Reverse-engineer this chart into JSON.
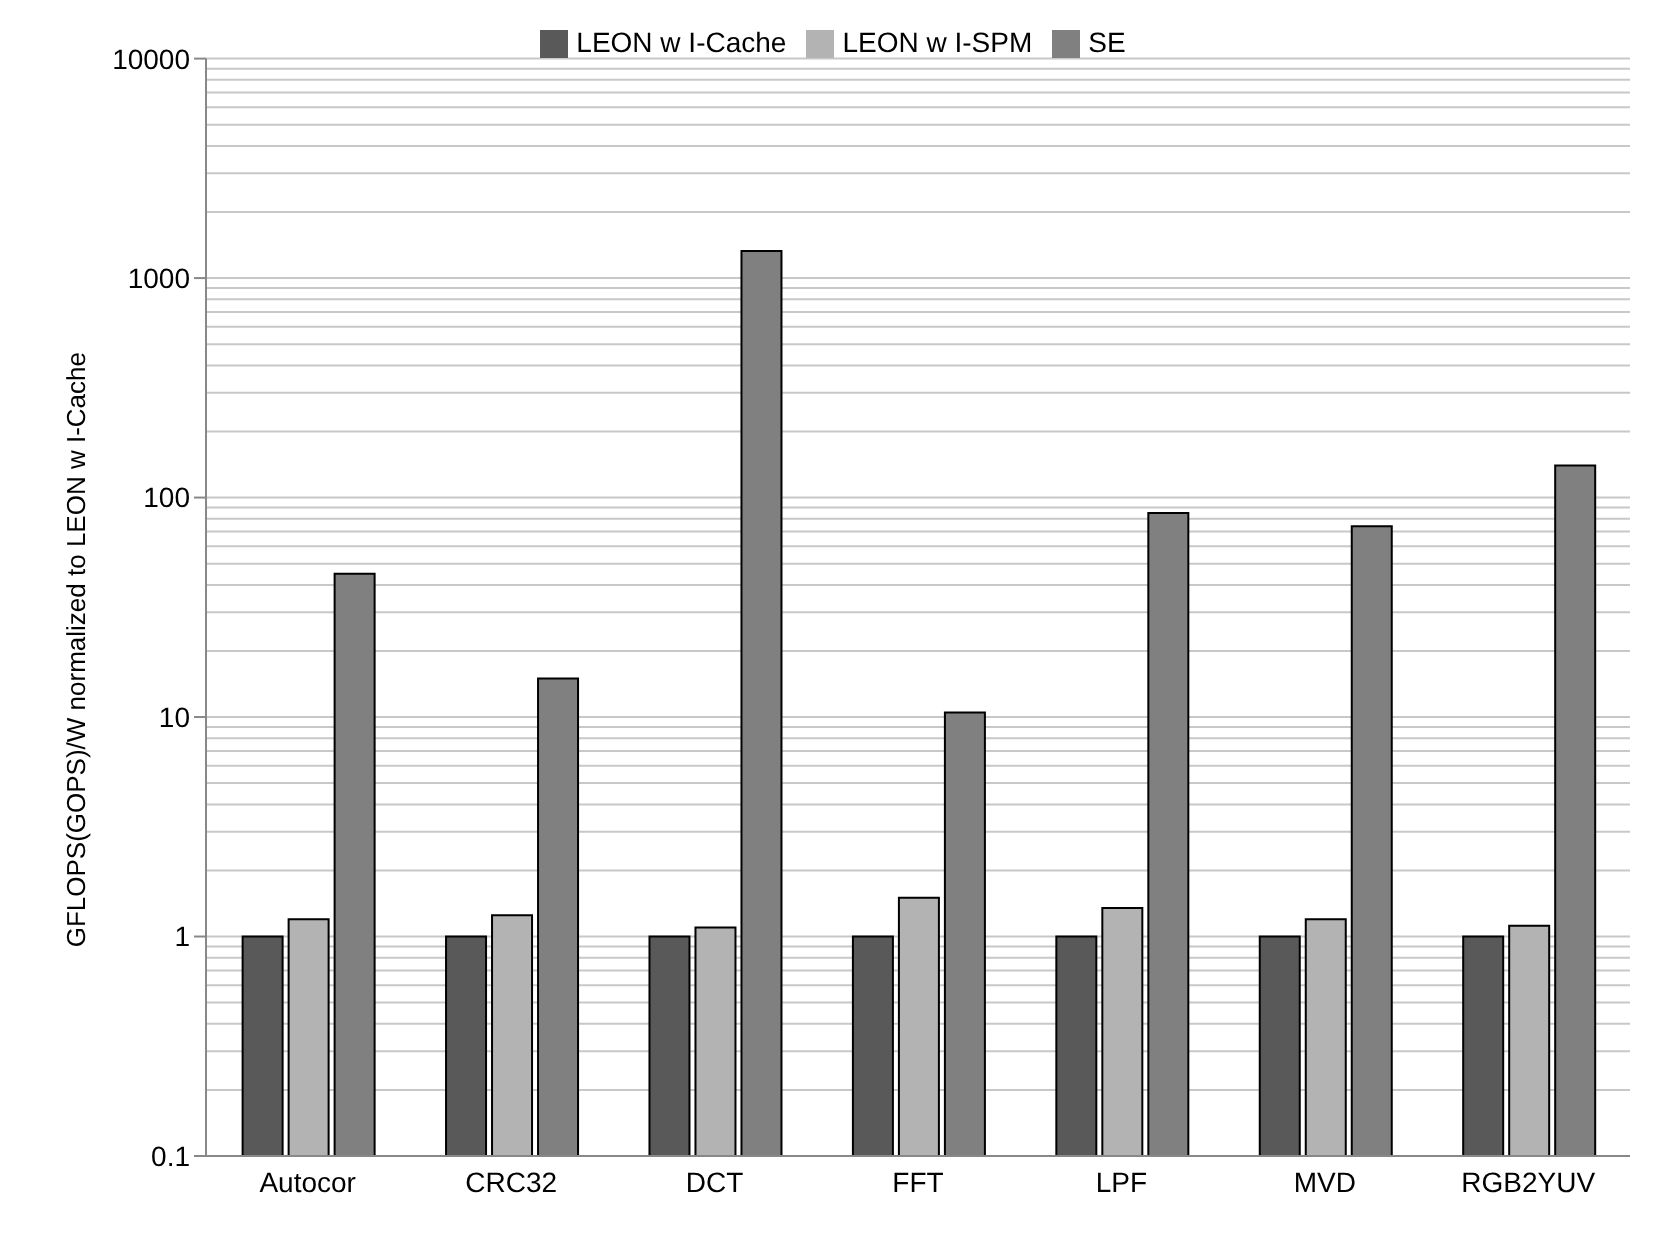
{
  "chart_data": {
    "type": "bar",
    "ylabel": "GFLOPS(GOPS)/W normalized to LEON w I-Cache",
    "categories": [
      "Autocor",
      "CRC32",
      "DCT",
      "FFT",
      "LPF",
      "MVD",
      "RGB2YUV"
    ],
    "series": [
      {
        "name": "LEON w I-Cache",
        "color": "#595959",
        "values": [
          1,
          1,
          1,
          1,
          1,
          1,
          1
        ]
      },
      {
        "name": "LEON w I-SPM",
        "color": "#b3b3b3",
        "values": [
          1.2,
          1.25,
          1.1,
          1.5,
          1.35,
          1.2,
          1.12
        ]
      },
      {
        "name": "SE",
        "color": "#808080",
        "values": [
          45,
          15,
          1330,
          10.5,
          85,
          74,
          140
        ]
      }
    ],
    "log": true,
    "ylim": [
      0.1,
      10000
    ],
    "yticks": [
      0.1,
      1,
      10,
      100,
      1000,
      10000
    ],
    "grid": "y",
    "legend": "top"
  }
}
